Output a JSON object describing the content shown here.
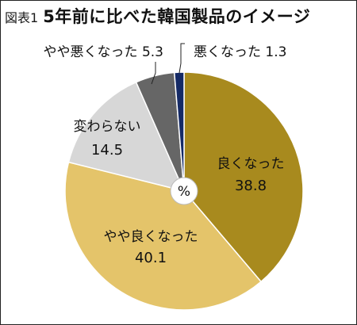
{
  "header": {
    "figure_label": "図表1",
    "title": "5年前に比べた韓国製品のイメージ"
  },
  "chart_data": {
    "type": "pie",
    "unit": "%",
    "start_angle_deg": 0,
    "direction": "clockwise",
    "slices": [
      {
        "label": "良くなった",
        "value": 38.8,
        "value_text": "38.8",
        "color": "#a88a1e"
      },
      {
        "label": "やや良くなった",
        "value": 40.1,
        "value_text": "40.1",
        "color": "#e4c46a"
      },
      {
        "label": "変わらない",
        "value": 14.5,
        "value_text": "14.5",
        "color": "#d7d7d7"
      },
      {
        "label": "やや悪くなった",
        "value": 5.3,
        "value_text": "5.3",
        "color": "#666666"
      },
      {
        "label": "悪くなった",
        "value": 1.3,
        "value_text": "1.3",
        "color": "#152a66"
      }
    ]
  }
}
